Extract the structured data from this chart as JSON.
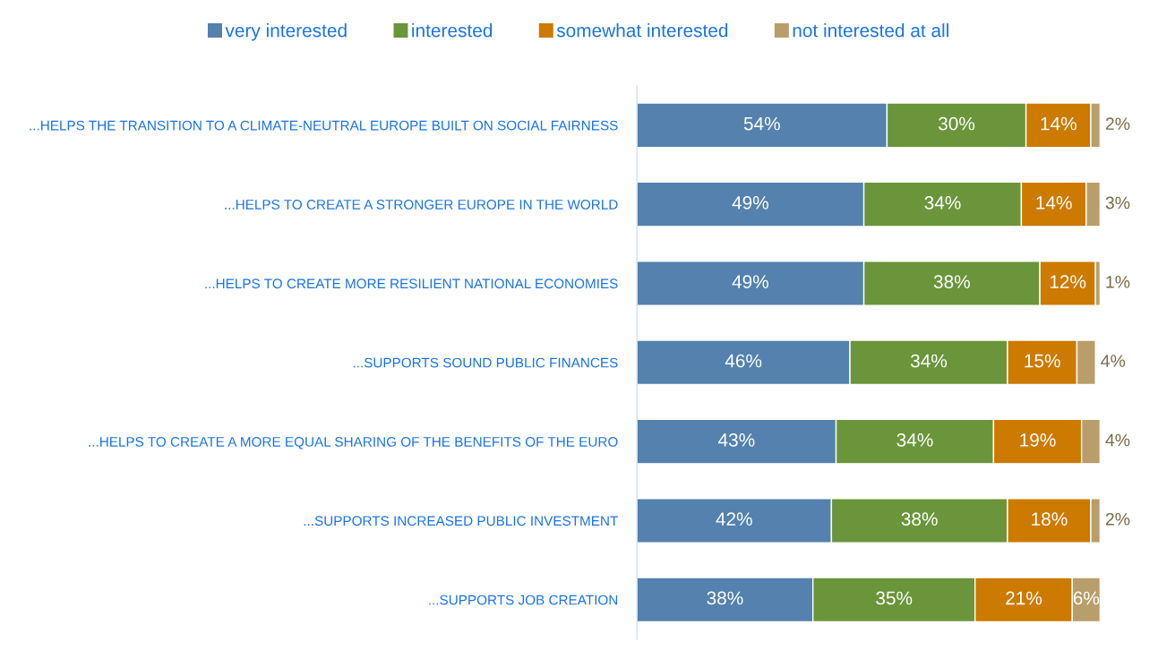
{
  "chart_data": {
    "type": "bar",
    "orientation": "horizontal",
    "stacked": true,
    "legend": "top",
    "xlim": [
      0,
      100
    ],
    "tick_labels": "y",
    "categories": [
      "...HELPS THE TRANSITION TO A CLIMATE-NEUTRAL EUROPE BUILT ON SOCIAL FAIRNESS",
      "...HELPS TO CREATE A STRONGER EUROPE IN THE WORLD",
      "...HELPS TO CREATE MORE RESILIENT NATIONAL ECONOMIES",
      "...SUPPORTS SOUND PUBLIC FINANCES",
      "...HELPS TO CREATE A MORE EQUAL SHARING OF THE BENEFITS OF THE EURO",
      "...SUPPORTS INCREASED PUBLIC INVESTMENT",
      "...SUPPORTS JOB CREATION"
    ],
    "series": [
      {
        "name": "very interested",
        "color": "#5481ad",
        "values": [
          54,
          49,
          49,
          46,
          43,
          42,
          38
        ],
        "value_labels": [
          "54%",
          "49%",
          "49%",
          "46%",
          "43%",
          "42%",
          "38%"
        ]
      },
      {
        "name": "interested",
        "color": "#6a953b",
        "values": [
          30,
          34,
          38,
          34,
          34,
          38,
          35
        ],
        "value_labels": [
          "30%",
          "34%",
          "38%",
          "34%",
          "34%",
          "38%",
          "35%"
        ]
      },
      {
        "name": "somewhat interested",
        "color": "#cc7a00",
        "values": [
          14,
          14,
          12,
          15,
          19,
          18,
          21
        ],
        "value_labels": [
          "14%",
          "14%",
          "12%",
          "15%",
          "19%",
          "18%",
          "21%"
        ]
      },
      {
        "name": "not interested at all",
        "color": "#b89e6a",
        "values": [
          2,
          3,
          1,
          4,
          4,
          2,
          6
        ],
        "value_labels": [
          "2%",
          "3%",
          "1%",
          "4%",
          "4%",
          "2%",
          "6%"
        ]
      }
    ]
  }
}
